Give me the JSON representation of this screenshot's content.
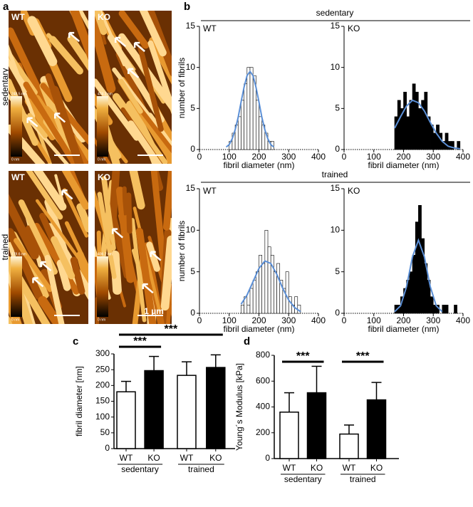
{
  "panel_labels": [
    "a",
    "b",
    "c",
    "d"
  ],
  "panel_a": {
    "rows": [
      "sedentary",
      "trained"
    ],
    "images": [
      {
        "label": "WT",
        "colorbar": [
          "248.5 nm",
          "0 nm"
        ]
      },
      {
        "label": "KO",
        "colorbar": [
          "474.2 nm",
          "0 nm"
        ]
      },
      {
        "label": "WT",
        "colorbar": [
          "179.6 nm",
          "0 nm"
        ]
      },
      {
        "label": "KO",
        "colorbar": [
          "406.2 nm",
          "0 nm"
        ]
      }
    ],
    "scale": "1 µm"
  },
  "panel_b": {
    "headers": [
      "sedentary",
      "trained"
    ]
  },
  "chart_data": [
    {
      "type": "histogram",
      "label": "WT",
      "color": "#ffffff",
      "bins": [
        100,
        110,
        120,
        130,
        140,
        150,
        160,
        170,
        180,
        190,
        200,
        210,
        220,
        230,
        240,
        250
      ],
      "counts": [
        1,
        2,
        3,
        4,
        6,
        8,
        10,
        10,
        9,
        6,
        4,
        3,
        2,
        1,
        1
      ],
      "fit": {
        "color": "#5b8fd6",
        "x": [
          90,
          100,
          110,
          120,
          130,
          140,
          150,
          160,
          170,
          180,
          190,
          200,
          210,
          220,
          230,
          240,
          250
        ],
        "values": [
          0.3,
          0.6,
          1.3,
          2.4,
          3.9,
          5.8,
          7.6,
          9.0,
          9.5,
          9.0,
          7.6,
          5.8,
          3.9,
          2.4,
          1.3,
          0.6,
          0.3
        ]
      },
      "xlim": [
        0,
        400
      ],
      "xticks": [
        0,
        100,
        200,
        300,
        400
      ],
      "ylim": [
        0,
        15
      ],
      "yticks": [
        0,
        5,
        10,
        15
      ],
      "xlabel": "fibril diameter (nm)",
      "ylabel": "number of fibrils"
    },
    {
      "type": "histogram",
      "label": "KO",
      "color": "#000000",
      "bins": [
        170,
        180,
        190,
        200,
        210,
        220,
        230,
        240,
        250,
        260,
        270,
        280,
        290,
        300,
        310,
        320,
        330,
        340,
        350,
        360,
        370,
        380,
        390
      ],
      "counts": [
        4,
        6,
        5,
        7,
        4,
        6,
        8,
        7,
        5,
        6,
        7,
        4,
        3,
        2,
        3,
        2,
        1,
        2,
        1,
        1,
        0,
        1
      ],
      "fit": {
        "color": "#5b8fd6",
        "x": [
          170,
          190,
          210,
          230,
          250,
          270,
          290,
          310,
          330,
          350,
          370,
          390
        ],
        "values": [
          2.6,
          4.0,
          5.3,
          6.0,
          5.7,
          4.7,
          3.3,
          2.0,
          1.0,
          0.4,
          0.2,
          0.1
        ]
      },
      "xlim": [
        0,
        400
      ],
      "xticks": [
        0,
        100,
        200,
        300,
        400
      ],
      "ylim": [
        0,
        15
      ],
      "yticks": [
        0,
        5,
        10,
        15
      ],
      "xlabel": "fibril diameter (nm)"
    },
    {
      "type": "histogram",
      "label": "WT",
      "color": "#ffffff",
      "bins": [
        140,
        150,
        160,
        170,
        180,
        190,
        200,
        210,
        220,
        230,
        240,
        250,
        260,
        270,
        280,
        290,
        300,
        310,
        320,
        330,
        340
      ],
      "counts": [
        1,
        2,
        1,
        3,
        4,
        5,
        7,
        6,
        10,
        8,
        7,
        5,
        6,
        4,
        3,
        5,
        2,
        1,
        2,
        1
      ],
      "fit": {
        "color": "#5b8fd6",
        "x": [
          140,
          160,
          180,
          200,
          220,
          240,
          260,
          280,
          300,
          320,
          340
        ],
        "values": [
          1.1,
          2.2,
          3.8,
          5.4,
          6.3,
          6.0,
          4.7,
          3.0,
          1.6,
          0.7,
          0.2
        ]
      },
      "xlim": [
        0,
        400
      ],
      "xticks": [
        0,
        100,
        200,
        300,
        400
      ],
      "ylim": [
        0,
        15
      ],
      "yticks": [
        0,
        5,
        10,
        15
      ],
      "xlabel": "fibril diameter (nm)",
      "ylabel": "number of fibrils"
    },
    {
      "type": "histogram",
      "label": "KO",
      "color": "#000000",
      "bins": [
        170,
        180,
        190,
        200,
        210,
        220,
        230,
        240,
        250,
        260,
        270,
        280,
        290,
        300,
        310,
        320,
        330,
        340,
        350,
        360,
        370,
        380
      ],
      "counts": [
        1,
        1,
        2,
        3,
        4,
        5,
        7,
        11,
        13,
        9,
        6,
        4,
        2,
        1,
        1,
        0,
        1,
        1,
        0,
        0,
        1
      ],
      "fit": {
        "color": "#5b8fd6",
        "x": [
          170,
          190,
          210,
          230,
          250,
          270,
          290,
          310,
          330
        ],
        "values": [
          0.2,
          0.9,
          3.2,
          6.8,
          8.8,
          6.8,
          3.2,
          0.9,
          0.2
        ]
      },
      "xlim": [
        0,
        400
      ],
      "xticks": [
        0,
        100,
        200,
        300,
        400
      ],
      "ylim": [
        0,
        15
      ],
      "yticks": [
        0,
        5,
        10,
        15
      ],
      "xlabel": "fibril diameter (nm)"
    },
    {
      "type": "bar",
      "categories": [
        "WT",
        "KO",
        "WT",
        "KO"
      ],
      "groups": [
        "sedentary",
        "trained"
      ],
      "values": [
        180,
        247,
        232,
        257
      ],
      "errors": [
        33,
        45,
        43,
        40
      ],
      "colors": [
        "#ffffff",
        "#000000",
        "#ffffff",
        "#000000"
      ],
      "ylim": [
        0,
        300
      ],
      "yticks": [
        0,
        50,
        100,
        150,
        200,
        250,
        300
      ],
      "ylabel": "fibril diameter [nm]",
      "annotations": [
        "***",
        "***"
      ]
    },
    {
      "type": "bar",
      "categories": [
        "WT",
        "KO",
        "WT",
        "KO"
      ],
      "groups": [
        "sedentary",
        "trained"
      ],
      "values": [
        360,
        510,
        190,
        455
      ],
      "errors": [
        150,
        205,
        70,
        135
      ],
      "colors": [
        "#ffffff",
        "#000000",
        "#ffffff",
        "#000000"
      ],
      "ylim": [
        0,
        800
      ],
      "yticks": [
        0,
        200,
        400,
        600,
        800
      ],
      "ylabel": "Young´s Modulus [kPa]",
      "annotations": [
        "***",
        "***"
      ]
    }
  ]
}
